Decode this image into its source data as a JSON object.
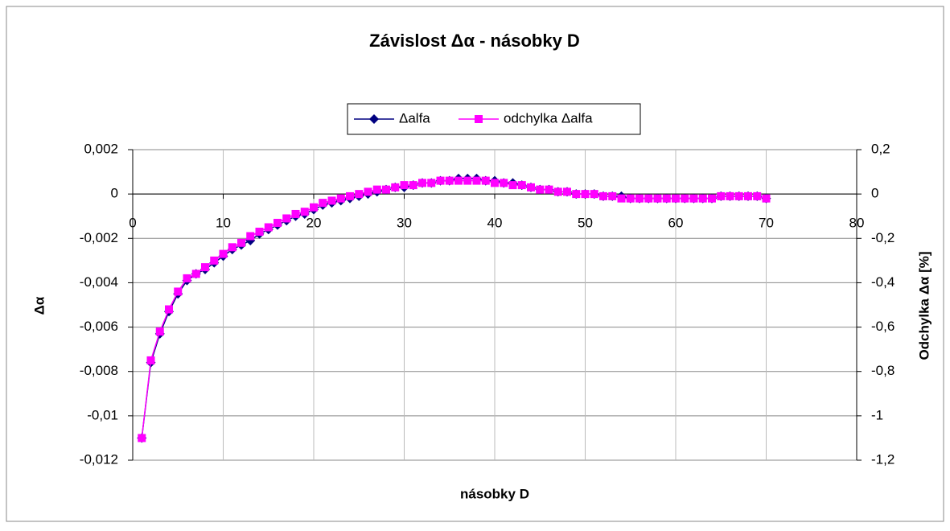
{
  "chart_data": {
    "type": "line",
    "title": "Závislost Δα - násobky D",
    "xlabel": "násobky D",
    "ylabel": "Δα",
    "y2label": "Odchylka Δα [%]",
    "x": [
      1,
      2,
      3,
      4,
      5,
      6,
      7,
      8,
      9,
      10,
      11,
      12,
      13,
      14,
      15,
      16,
      17,
      18,
      19,
      20,
      21,
      22,
      23,
      24,
      25,
      26,
      27,
      28,
      29,
      30,
      31,
      32,
      33,
      34,
      35,
      36,
      37,
      38,
      39,
      40,
      41,
      42,
      43,
      44,
      45,
      46,
      47,
      48,
      49,
      50,
      51,
      52,
      53,
      54,
      55,
      56,
      57,
      58,
      59,
      60,
      61,
      62,
      63,
      64,
      65,
      66,
      67,
      68,
      69,
      70
    ],
    "series": [
      {
        "name": "Δalfa",
        "color": "#000080",
        "marker": "diamond",
        "values": [
          -0.011,
          -0.0076,
          -0.0063,
          -0.0053,
          -0.0045,
          -0.0039,
          -0.0036,
          -0.0034,
          -0.0031,
          -0.0028,
          -0.0025,
          -0.0023,
          -0.0021,
          -0.0018,
          -0.0016,
          -0.0014,
          -0.0012,
          -0.001,
          -0.0009,
          -0.0007,
          -0.0005,
          -0.0004,
          -0.0003,
          -0.0002,
          -0.0001,
          0,
          0.0001,
          0.0002,
          0.0003,
          0.0003,
          0.0004,
          0.0005,
          0.0005,
          0.0006,
          0.0006,
          0.0007,
          0.0007,
          0.0007,
          0.0006,
          0.0006,
          0.0005,
          0.0005,
          0.0004,
          0.0003,
          0.0002,
          0.0002,
          0.0001,
          0.0001,
          0,
          0,
          0,
          -0.0001,
          -0.0001,
          -0.0001,
          -0.0002,
          -0.0002,
          -0.0002,
          -0.0002,
          -0.0002,
          -0.0002,
          -0.0002,
          -0.0002,
          -0.0002,
          -0.0002,
          -0.0001,
          -0.0001,
          -0.0001,
          -0.0001,
          -0.0001,
          -0.0002
        ]
      },
      {
        "name": "odchylka Δalfa",
        "color": "#ff00ff",
        "marker": "square",
        "axis": "y2",
        "values": [
          -1.1,
          -0.75,
          -0.62,
          -0.52,
          -0.44,
          -0.38,
          -0.36,
          -0.33,
          -0.3,
          -0.27,
          -0.24,
          -0.22,
          -0.19,
          -0.17,
          -0.15,
          -0.13,
          -0.11,
          -0.09,
          -0.08,
          -0.06,
          -0.04,
          -0.03,
          -0.02,
          -0.01,
          0,
          0.01,
          0.02,
          0.02,
          0.03,
          0.04,
          0.04,
          0.05,
          0.05,
          0.06,
          0.06,
          0.06,
          0.06,
          0.06,
          0.06,
          0.05,
          0.05,
          0.04,
          0.04,
          0.03,
          0.02,
          0.02,
          0.01,
          0.01,
          0,
          0,
          0,
          -0.01,
          -0.01,
          -0.02,
          -0.02,
          -0.02,
          -0.02,
          -0.02,
          -0.02,
          -0.02,
          -0.02,
          -0.02,
          -0.02,
          -0.02,
          -0.01,
          -0.01,
          -0.01,
          -0.01,
          -0.01,
          -0.02
        ]
      }
    ],
    "xlim": [
      0,
      80
    ],
    "xticks": [
      0,
      10,
      20,
      30,
      40,
      50,
      60,
      70,
      80
    ],
    "ylim": [
      -0.012,
      0.002
    ],
    "yticks": [
      {
        "value": -0.012,
        "label": "-0,012"
      },
      {
        "value": -0.01,
        "label": "-0,01"
      },
      {
        "value": -0.008,
        "label": "-0,008"
      },
      {
        "value": -0.006,
        "label": "-0,006"
      },
      {
        "value": -0.004,
        "label": "-0,004"
      },
      {
        "value": -0.002,
        "label": "-0,002"
      },
      0,
      {
        "value": 0.002,
        "label": "0,002"
      }
    ],
    "y2lim": [
      -1.2,
      0.2
    ],
    "y2ticks": [
      {
        "value": -1.2,
        "label": "-1,2"
      },
      -1,
      {
        "value": -0.8,
        "label": "-0,8"
      },
      {
        "value": -0.6,
        "label": "-0,6"
      },
      {
        "value": -0.4,
        "label": "-0,4"
      },
      {
        "value": -0.2,
        "label": "-0,2"
      },
      0,
      {
        "value": 0.2,
        "label": "0,2"
      }
    ],
    "grid": true,
    "legend": "top"
  }
}
